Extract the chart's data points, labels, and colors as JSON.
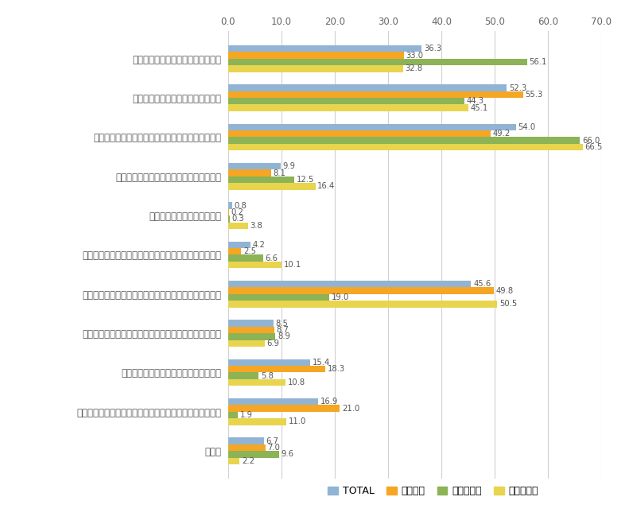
{
  "categories": [
    "研究したい課題や問題意識があった",
    "研究することに興味・関心があった",
    "自分自身の能力や技能を高めることに関心があった",
    "大学教員や研究者になるために必須だった",
    "フェローシップ等が得られた",
    "雇用先で勧められた、または雇用先で学位が必要だった",
    "修士号を取れば、良い仕事や良い収入が期待できるから",
    "尊敬している先輩や、目標となる人が進学しているから",
    "親や指導教授等から進学をすすめられた",
    "学生でいたかった、または学生という身分が必要であった",
    "その他"
  ],
  "series": {
    "TOTAL": [
      36.3,
      52.3,
      54.0,
      9.9,
      0.8,
      4.2,
      45.6,
      8.5,
      15.4,
      16.9,
      6.7
    ],
    "課程学生": [
      33.0,
      55.3,
      49.2,
      8.1,
      0.2,
      2.5,
      49.8,
      8.7,
      18.3,
      21.0,
      7.0
    ],
    "社会人学生": [
      56.1,
      44.3,
      66.0,
      12.5,
      0.3,
      6.6,
      19.0,
      8.9,
      5.8,
      1.9,
      9.6
    ],
    "外国人学生": [
      32.8,
      45.1,
      66.5,
      16.4,
      3.8,
      10.1,
      50.5,
      6.9,
      10.8,
      11.0,
      2.2
    ]
  },
  "series_order": [
    "TOTAL",
    "課程学生",
    "社会人学生",
    "外国人学生"
  ],
  "colors": {
    "TOTAL": "#92b4d4",
    "課程学生": "#f5a623",
    "社会人学生": "#8cb356",
    "外国人学生": "#e8d44d"
  },
  "xlim": [
    0,
    70
  ],
  "xticks": [
    0.0,
    10.0,
    20.0,
    30.0,
    40.0,
    50.0,
    60.0,
    70.0
  ],
  "bar_height": 0.17,
  "background_color": "#ffffff",
  "grid_color": "#d0d0d0",
  "label_fontsize": 8.5,
  "tick_fontsize": 8.5,
  "value_fontsize": 7.2,
  "legend_fontsize": 9
}
